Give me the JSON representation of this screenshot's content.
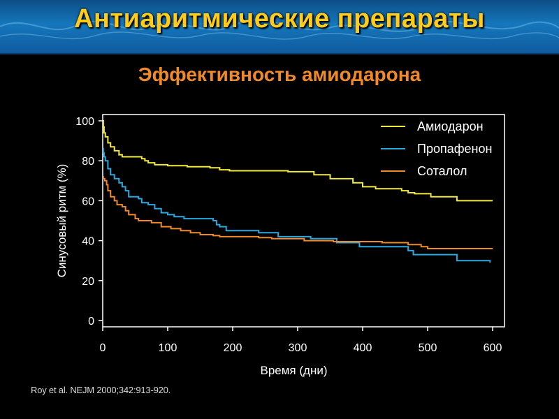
{
  "slide": {
    "title": "Антиаритмические препараты",
    "subtitle": "Эффективность амиодарона",
    "citation": "Roy et al. NEJM 2000;342:913-920."
  },
  "colors": {
    "title": "#ffcc1a",
    "subtitle": "#f08a28",
    "background": "#000000",
    "banner": "#1577bc"
  },
  "chart_data": {
    "type": "line",
    "step": true,
    "xlabel": "Время (дни)",
    "ylabel": "Синусовый ритм (%)",
    "xlim": [
      0,
      600
    ],
    "ylim": [
      0,
      100
    ],
    "xticks": [
      0,
      100,
      200,
      300,
      400,
      500,
      600
    ],
    "yticks": [
      0,
      20,
      40,
      60,
      80,
      100
    ],
    "grid": false,
    "legend_position": "top-right",
    "series": [
      {
        "name": "Амиодарон",
        "color": "#f2ea3a",
        "points": [
          [
            0,
            100
          ],
          [
            1,
            97
          ],
          [
            2,
            94
          ],
          [
            4,
            92
          ],
          [
            8,
            89
          ],
          [
            12,
            87
          ],
          [
            18,
            85
          ],
          [
            25,
            83
          ],
          [
            30,
            82
          ],
          [
            60,
            81
          ],
          [
            65,
            80
          ],
          [
            70,
            79
          ],
          [
            80,
            78
          ],
          [
            100,
            77.5
          ],
          [
            130,
            77
          ],
          [
            165,
            76.5
          ],
          [
            180,
            75.5
          ],
          [
            195,
            75
          ],
          [
            270,
            75
          ],
          [
            285,
            74.5
          ],
          [
            325,
            73
          ],
          [
            350,
            71
          ],
          [
            385,
            69
          ],
          [
            400,
            67
          ],
          [
            420,
            66
          ],
          [
            460,
            65
          ],
          [
            470,
            64
          ],
          [
            480,
            63.5
          ],
          [
            505,
            62
          ],
          [
            545,
            60
          ],
          [
            600,
            60
          ]
        ]
      },
      {
        "name": "Пропафенон",
        "color": "#2aa8e0",
        "points": [
          [
            0,
            86
          ],
          [
            1,
            84
          ],
          [
            2,
            82
          ],
          [
            4,
            80
          ],
          [
            8,
            76
          ],
          [
            12,
            73
          ],
          [
            18,
            71
          ],
          [
            25,
            69
          ],
          [
            30,
            67
          ],
          [
            35,
            65
          ],
          [
            40,
            62
          ],
          [
            55,
            61
          ],
          [
            60,
            59
          ],
          [
            70,
            58
          ],
          [
            80,
            56
          ],
          [
            90,
            54
          ],
          [
            100,
            53
          ],
          [
            110,
            52
          ],
          [
            125,
            51
          ],
          [
            170,
            50
          ],
          [
            175,
            48
          ],
          [
            180,
            47
          ],
          [
            190,
            45
          ],
          [
            240,
            44
          ],
          [
            270,
            42
          ],
          [
            320,
            41
          ],
          [
            360,
            39
          ],
          [
            395,
            37
          ],
          [
            470,
            35
          ],
          [
            478,
            33
          ],
          [
            545,
            30
          ],
          [
            596,
            29
          ]
        ]
      },
      {
        "name": "Соталол",
        "color": "#f08a28",
        "points": [
          [
            0,
            72
          ],
          [
            1,
            71
          ],
          [
            3,
            70
          ],
          [
            6,
            68
          ],
          [
            8,
            65
          ],
          [
            12,
            62
          ],
          [
            18,
            60
          ],
          [
            22,
            58
          ],
          [
            30,
            57
          ],
          [
            35,
            55
          ],
          [
            40,
            53
          ],
          [
            50,
            51
          ],
          [
            55,
            50
          ],
          [
            75,
            49
          ],
          [
            90,
            47
          ],
          [
            105,
            46
          ],
          [
            120,
            45
          ],
          [
            135,
            44
          ],
          [
            150,
            43
          ],
          [
            170,
            42.5
          ],
          [
            180,
            42
          ],
          [
            240,
            41.5
          ],
          [
            260,
            41
          ],
          [
            310,
            40
          ],
          [
            355,
            39.5
          ],
          [
            430,
            39
          ],
          [
            470,
            38
          ],
          [
            490,
            37
          ],
          [
            500,
            36
          ],
          [
            600,
            36
          ]
        ]
      }
    ]
  }
}
